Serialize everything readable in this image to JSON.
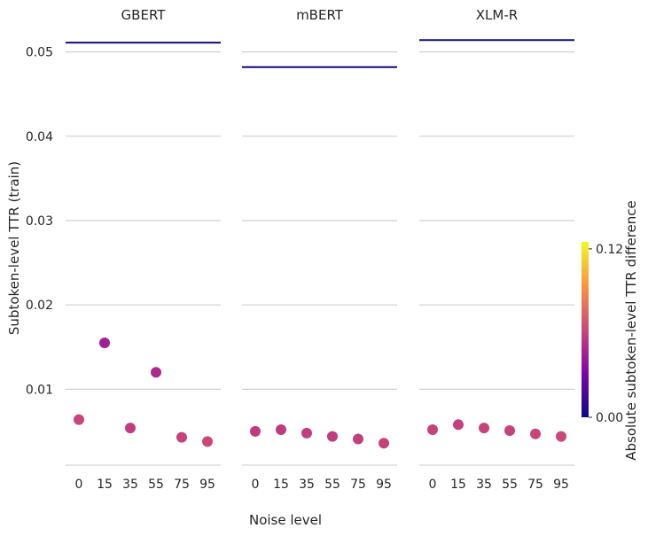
{
  "chart_data": {
    "type": "scatter",
    "panels": [
      {
        "title": "GBERT",
        "x": [
          "0",
          "15",
          "35",
          "55",
          "75",
          "95"
        ],
        "y": [
          0.0064,
          0.0155,
          0.0054,
          0.012,
          0.0043,
          0.0038
        ],
        "color_values": [
          0.061,
          0.045,
          0.058,
          0.049,
          0.06,
          0.062
        ],
        "reference_line": 0.0511
      },
      {
        "title": "mBERT",
        "x": [
          "0",
          "15",
          "35",
          "55",
          "75",
          "95"
        ],
        "y": [
          0.005,
          0.0052,
          0.0048,
          0.0044,
          0.0041,
          0.0036
        ],
        "color_values": [
          0.057,
          0.057,
          0.058,
          0.058,
          0.059,
          0.06
        ],
        "reference_line": 0.0482
      },
      {
        "title": "XLM-R",
        "x": [
          "0",
          "15",
          "35",
          "55",
          "75",
          "95"
        ],
        "y": [
          0.0052,
          0.0058,
          0.0054,
          0.0051,
          0.0047,
          0.0044
        ],
        "color_values": [
          0.06,
          0.059,
          0.06,
          0.06,
          0.061,
          0.062
        ],
        "reference_line": 0.0514
      }
    ],
    "y_ticks": [
      "0.01",
      "0.02",
      "0.03",
      "0.04",
      "0.05"
    ],
    "ylim": [
      0.001,
      0.053
    ],
    "xlabel": "Noise level",
    "ylabel": "Subtoken-level TTR (train)",
    "colorbar": {
      "label": "Absolute subtoken-level TTR difference",
      "ticks": [
        "0.00",
        "0.12"
      ],
      "range": [
        0,
        0.125
      ],
      "colormap": "plasma"
    },
    "grid": "horizontal",
    "line_color": "#120b7a"
  }
}
